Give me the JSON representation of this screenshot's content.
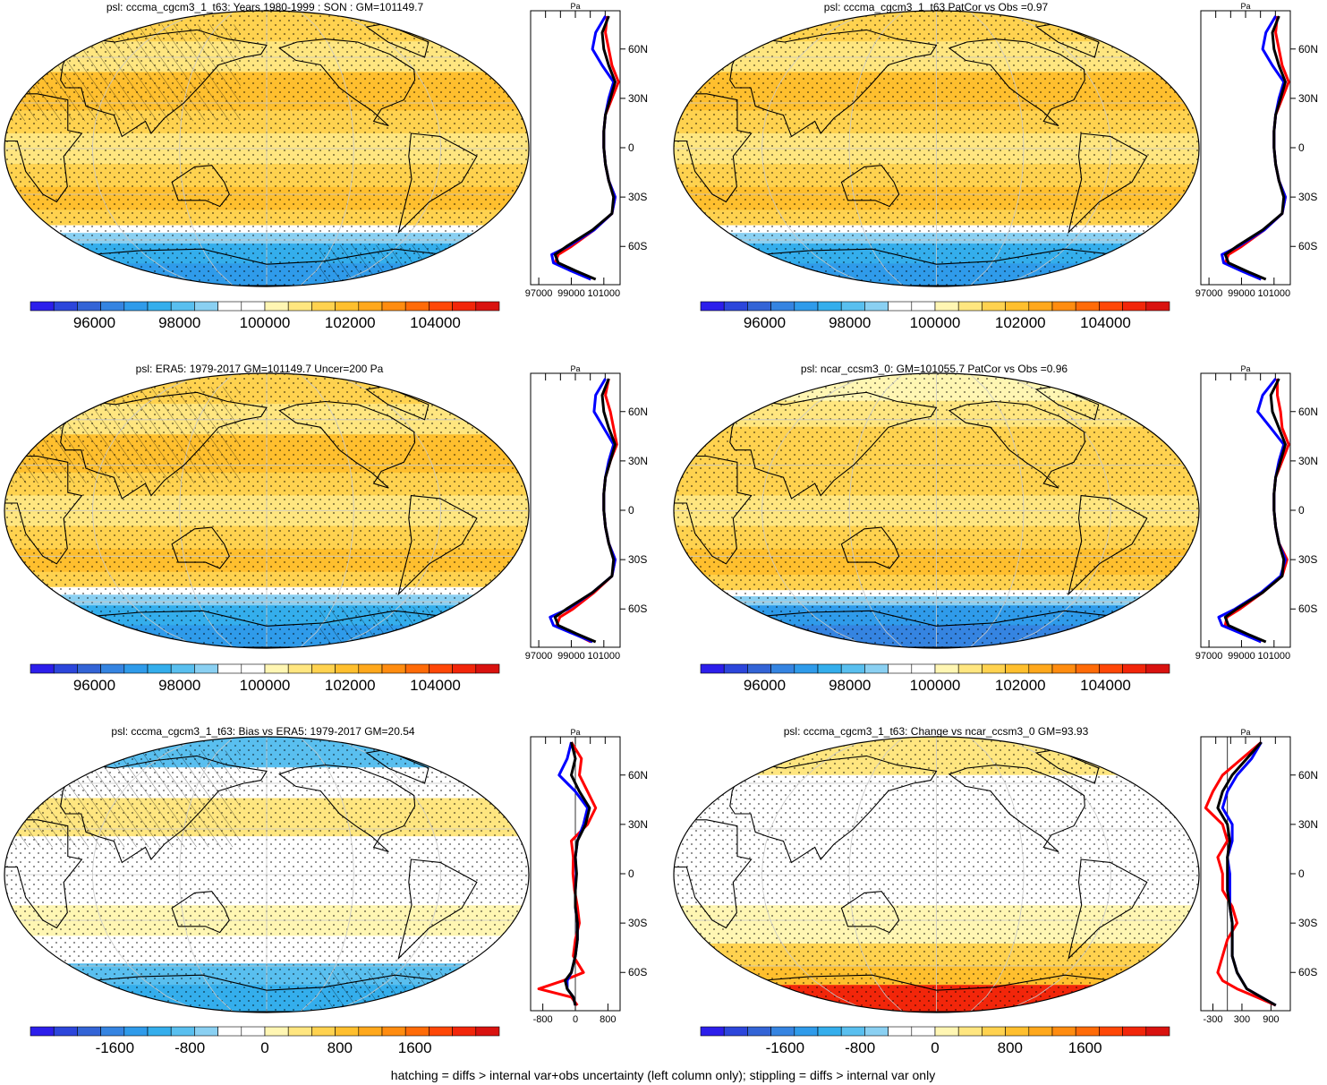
{
  "footer": "hatching = diffs > internal var+obs uncertainty (left column only); stippling = diffs > internal var only",
  "lat_labels": [
    "60N",
    "30N",
    "0",
    "30S",
    "60S"
  ],
  "lat_values": [
    60,
    30,
    0,
    -30,
    -60
  ],
  "colors": {
    "ramp": [
      "#2c1eeb",
      "#2c46db",
      "#3364d6",
      "#3584e1",
      "#2f9bea",
      "#34aeec",
      "#59bfef",
      "#8ad0f2",
      "#ffffff",
      "#ffffff",
      "#fff6b3",
      "#ffe680",
      "#ffd24f",
      "#ffbf2e",
      "#ffa81c",
      "#ff8c10",
      "#ff6b08",
      "#ff4707",
      "#f2260a",
      "#d9120f"
    ],
    "model1": "#ff0000",
    "model2": "#0000ff",
    "obs": "#000000",
    "grid": "#c8c8c8"
  },
  "chart_data": [
    {
      "id": "p1",
      "type": "heatmap",
      "title": "psl: cccma_cgcm3_1_t63: Years 1980-1999 : SON : GM=101149.7",
      "colorbar_labels": [
        "96000",
        "98000",
        "100000",
        "102000",
        "104000"
      ],
      "colorbar_values": [
        96000,
        98000,
        100000,
        102000,
        104000
      ],
      "colorbar_range": [
        94500,
        105500
      ],
      "zonal_mean": {
        "xlim": [
          96500,
          102000
        ],
        "xtick_labels": [
          "97000",
          "99000",
          "101000"
        ],
        "xtick_values": [
          97000,
          99000,
          101000
        ],
        "lat": [
          80,
          70,
          60,
          50,
          40,
          30,
          20,
          10,
          0,
          -10,
          -20,
          -30,
          -40,
          -50,
          -60,
          -65,
          -70,
          -75,
          -80
        ],
        "series": [
          {
            "color": "model1",
            "values": [
              101200,
              101100,
              101300,
              101500,
              101900,
              101500,
              101100,
              101000,
              101000,
              101100,
              101300,
              101700,
              101500,
              100400,
              99000,
              98200,
              98000,
              99200,
              100200
            ]
          },
          {
            "color": "model2",
            "values": [
              101100,
              100500,
              100300,
              100900,
              101600,
              101300,
              101100,
              101000,
              101000,
              101100,
              101300,
              101700,
              101500,
              100400,
              98800,
              97800,
              97900,
              99000,
              100200
            ]
          },
          {
            "color": "obs",
            "values": [
              101300,
              100900,
              101000,
              101300,
              101700,
              101400,
              101100,
              101000,
              101000,
              101100,
              101300,
              101600,
              101500,
              100300,
              98700,
              98000,
              98200,
              99300,
              100500
            ]
          }
        ]
      }
    },
    {
      "id": "p2",
      "type": "heatmap",
      "title": "psl: cccma_cgcm3_1_t63 PatCor vs Obs =0.97",
      "colorbar_labels": [
        "96000",
        "98000",
        "100000",
        "102000",
        "104000"
      ],
      "colorbar_values": [
        96000,
        98000,
        100000,
        102000,
        104000
      ],
      "colorbar_range": [
        94500,
        105500
      ],
      "zonal_mean": {
        "xlim": [
          96500,
          102000
        ],
        "xtick_labels": [
          "97000",
          "99000",
          "101000"
        ],
        "xtick_values": [
          97000,
          99000,
          101000
        ],
        "lat": [
          80,
          70,
          60,
          50,
          40,
          30,
          20,
          10,
          0,
          -10,
          -20,
          -30,
          -40,
          -50,
          -60,
          -65,
          -70,
          -75,
          -80
        ],
        "series": [
          {
            "color": "model1",
            "values": [
              101200,
              101100,
              101300,
              101500,
              101900,
              101500,
              101100,
              101000,
              101000,
              101100,
              101300,
              101700,
              101500,
              100400,
              99000,
              98200,
              98000,
              99200,
              100200
            ]
          },
          {
            "color": "model2",
            "values": [
              101100,
              100500,
              100300,
              100900,
              101600,
              101300,
              101100,
              101000,
              101000,
              101100,
              101300,
              101700,
              101500,
              100400,
              98800,
              97800,
              97900,
              99000,
              100200
            ]
          },
          {
            "color": "obs",
            "values": [
              101300,
              100900,
              101000,
              101300,
              101700,
              101400,
              101100,
              101000,
              101000,
              101100,
              101300,
              101600,
              101500,
              100300,
              98700,
              98000,
              98200,
              99300,
              100500
            ]
          }
        ]
      }
    },
    {
      "id": "p3",
      "type": "heatmap",
      "title": "psl: ERA5: 1979-2017 GM=101149.7 Uncer=200 Pa",
      "colorbar_labels": [
        "96000",
        "98000",
        "100000",
        "102000",
        "104000"
      ],
      "colorbar_values": [
        96000,
        98000,
        100000,
        102000,
        104000
      ],
      "colorbar_range": [
        94500,
        105500
      ],
      "zonal_mean": {
        "xlim": [
          96500,
          102000
        ],
        "xtick_labels": [
          "97000",
          "99000",
          "101000"
        ],
        "xtick_values": [
          97000,
          99000,
          101000
        ],
        "lat": [
          80,
          70,
          60,
          50,
          40,
          30,
          20,
          10,
          0,
          -10,
          -20,
          -30,
          -40,
          -50,
          -60,
          -65,
          -70,
          -75,
          -80
        ],
        "series": [
          {
            "color": "model1",
            "values": [
              101300,
              101100,
              101400,
              101600,
              101800,
              101400,
              101100,
              101000,
              101000,
              101100,
              101300,
              101700,
              101500,
              100400,
              99100,
              98300,
              98100,
              99200,
              100200
            ]
          },
          {
            "color": "model2",
            "values": [
              101100,
              100500,
              100400,
              101000,
              101600,
              101300,
              101100,
              101000,
              101000,
              101100,
              101300,
              101700,
              101500,
              100300,
              98800,
              97700,
              97900,
              99100,
              100300
            ]
          },
          {
            "color": "obs",
            "values": [
              101300,
              100900,
              101000,
              101300,
              101700,
              101400,
              101100,
              101000,
              101000,
              101100,
              101300,
              101600,
              101500,
              100300,
              98700,
              98000,
              98200,
              99300,
              100500
            ]
          }
        ]
      }
    },
    {
      "id": "p4",
      "type": "heatmap",
      "title": "psl: ncar_ccsm3_0: GM=101055.7 PatCor vs Obs =0.96",
      "colorbar_labels": [
        "96000",
        "98000",
        "100000",
        "102000",
        "104000"
      ],
      "colorbar_values": [
        96000,
        98000,
        100000,
        102000,
        104000
      ],
      "colorbar_range": [
        94500,
        105500
      ],
      "zonal_mean": {
        "xlim": [
          96500,
          102000
        ],
        "xtick_labels": [
          "97000",
          "99000",
          "101000"
        ],
        "xtick_values": [
          97000,
          99000,
          101000
        ],
        "lat": [
          80,
          70,
          60,
          50,
          40,
          30,
          20,
          10,
          0,
          -10,
          -20,
          -30,
          -40,
          -50,
          -60,
          -65,
          -70,
          -75,
          -80
        ],
        "series": [
          {
            "color": "model1",
            "values": [
              101200,
              101200,
              101400,
              101500,
              101900,
              101500,
              101100,
              101000,
              101000,
              101100,
              101300,
              101800,
              101500,
              100300,
              98900,
              98100,
              98000,
              99200,
              100200
            ]
          },
          {
            "color": "model2",
            "values": [
              101100,
              100300,
              100000,
              100800,
              101600,
              101300,
              101100,
              101000,
              101000,
              101100,
              101300,
              101700,
              101400,
              100200,
              98600,
              97600,
              97800,
              99000,
              100200
            ]
          },
          {
            "color": "obs",
            "values": [
              101300,
              100800,
              100900,
              101300,
              101700,
              101400,
              101100,
              101000,
              101000,
              101100,
              101300,
              101600,
              101500,
              100300,
              98700,
              98000,
              98200,
              99300,
              100500
            ]
          }
        ]
      }
    },
    {
      "id": "p5",
      "type": "heatmap",
      "title": "psl: cccma_cgcm3_1_t63: Bias vs ERA5: 1979-2017  GM=20.54",
      "colorbar_labels": [
        "-1600",
        "-800",
        "0",
        "800",
        "1600"
      ],
      "colorbar_values": [
        -1600,
        -800,
        0,
        800,
        1600
      ],
      "colorbar_range": [
        -2500,
        2500
      ],
      "zonal_mean": {
        "xlim": [
          -1100,
          1100
        ],
        "xtick_labels": [
          "-800",
          "0",
          "800"
        ],
        "xtick_values": [
          -800,
          0,
          800
        ],
        "zero_line": true,
        "lat": [
          80,
          70,
          60,
          50,
          40,
          30,
          20,
          10,
          0,
          -10,
          -20,
          -30,
          -40,
          -50,
          -60,
          -65,
          -70,
          -75,
          -80
        ],
        "series": [
          {
            "color": "model1",
            "values": [
              -100,
              150,
              100,
              300,
              500,
              300,
              -100,
              -50,
              -60,
              -20,
              50,
              100,
              0,
              -50,
              200,
              -300,
              -900,
              -100,
              50
            ]
          },
          {
            "color": "model2",
            "values": [
              -100,
              -200,
              -400,
              0,
              300,
              200,
              50,
              0,
              20,
              0,
              0,
              50,
              50,
              0,
              -100,
              -200,
              -200,
              -50,
              0
            ]
          },
          {
            "color": "obs",
            "values": [
              -100,
              0,
              -100,
              100,
              350,
              250,
              50,
              0,
              30,
              0,
              0,
              50,
              50,
              0,
              -100,
              -250,
              -200,
              -50,
              0
            ]
          }
        ]
      }
    },
    {
      "id": "p6",
      "type": "heatmap",
      "title": "psl: cccma_cgcm3_1_t63: Change vs ncar_ccsm3_0 GM=93.93",
      "colorbar_labels": [
        "-1600",
        "-800",
        "0",
        "800",
        "1600"
      ],
      "colorbar_values": [
        -1600,
        -800,
        0,
        800,
        1600
      ],
      "colorbar_range": [
        -2500,
        2500
      ],
      "zonal_mean": {
        "xlim": [
          -550,
          1300
        ],
        "xtick_labels": [
          "-300",
          "300",
          "900"
        ],
        "xtick_values": [
          -300,
          300,
          900
        ],
        "zero_line": true,
        "lat": [
          80,
          70,
          60,
          50,
          40,
          30,
          20,
          10,
          0,
          -10,
          -20,
          -30,
          -40,
          -50,
          -60,
          -65,
          -70,
          -75,
          -80
        ],
        "series": [
          {
            "color": "model1",
            "values": [
              700,
              300,
              -100,
              -300,
              -450,
              -100,
              0,
              -200,
              -100,
              -100,
              100,
              200,
              0,
              -100,
              -200,
              -100,
              200,
              600,
              1000
            ]
          },
          {
            "color": "model2",
            "values": [
              700,
              500,
              200,
              0,
              -100,
              100,
              100,
              0,
              50,
              50,
              50,
              100,
              100,
              100,
              200,
              300,
              400,
              700,
              1000
            ]
          },
          {
            "color": "obs",
            "values": [
              700,
              400,
              100,
              -100,
              -200,
              0,
              50,
              0,
              0,
              0,
              50,
              100,
              100,
              100,
              200,
              300,
              400,
              700,
              1000
            ]
          }
        ]
      }
    }
  ]
}
